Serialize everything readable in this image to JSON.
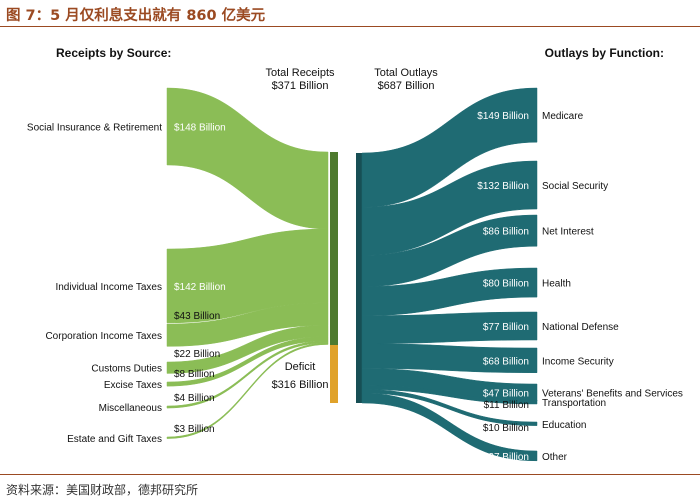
{
  "figure_title": "图 7：5 月仅利息支出就有 860 亿美元",
  "source_note": "资料来源：美国财政部，德邦研究所",
  "colors": {
    "receipts": "#8bbd56",
    "receipts_bar": "#4e7a2e",
    "outlays": "#1f6b73",
    "outlays_bar": "#174f55",
    "deficit": "#e0a22a",
    "value_label_on_flow": "#ffffff",
    "text": "#111111",
    "title": "#9b4a22"
  },
  "chart_data": {
    "type": "sankey",
    "unit": "Billion USD",
    "left_panel_title": "Receipts by Source:",
    "right_panel_title": "Outlays by Function:",
    "total_receipts": {
      "label_line1": "Total Receipts",
      "label_line2": "$371 Billion",
      "value": 371
    },
    "total_outlays": {
      "label_line1": "Total Outlays",
      "label_line2": "$687 Billion",
      "value": 687
    },
    "deficit": {
      "label_line1": "Deficit",
      "label_line2": "$316 Billion",
      "value": 316
    },
    "receipts": [
      {
        "name": "Social Insurance & Retirement",
        "value": 148,
        "value_label": "$148 Billion"
      },
      {
        "name": "Individual Income Taxes",
        "value": 142,
        "value_label": "$142 Billion"
      },
      {
        "name": "Corporation Income Taxes",
        "value": 43,
        "value_label": "$43 Billion"
      },
      {
        "name": "Customs Duties",
        "value": 22,
        "value_label": "$22 Billion"
      },
      {
        "name": "Excise Taxes",
        "value": 8,
        "value_label": "$8 Billion"
      },
      {
        "name": "Miscellaneous",
        "value": 4,
        "value_label": "$4 Billion"
      },
      {
        "name": "Estate and Gift Taxes",
        "value": 3,
        "value_label": "$3 Billion"
      }
    ],
    "outlays": [
      {
        "name": "Medicare",
        "value": 149,
        "value_label": "$149 Billion"
      },
      {
        "name": "Social Security",
        "value": 132,
        "value_label": "$132 Billion"
      },
      {
        "name": "Net Interest",
        "value": 86,
        "value_label": "$86 Billion"
      },
      {
        "name": "Health",
        "value": 80,
        "value_label": "$80 Billion"
      },
      {
        "name": "National Defense",
        "value": 77,
        "value_label": "$77 Billion"
      },
      {
        "name": "Income Security",
        "value": 68,
        "value_label": "$68 Billion"
      },
      {
        "name": "Veterans' Benefits and Services",
        "value": 47,
        "value_label": "$47 Billion"
      },
      {
        "name": "Transportation",
        "value": 11,
        "value_label": "$11 Billion"
      },
      {
        "name": "Education",
        "value": 10,
        "value_label": "$10 Billion"
      },
      {
        "name": "Other",
        "value": 27,
        "value_label": "$27 Billion"
      }
    ]
  }
}
